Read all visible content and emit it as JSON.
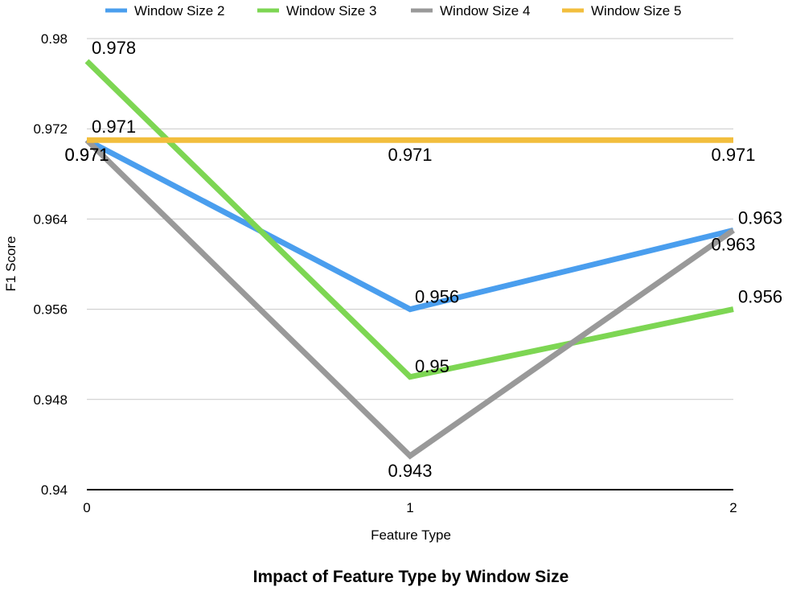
{
  "chart_data": {
    "type": "line",
    "title": "Impact of Feature Type by Window Size",
    "xlabel": "Feature Type",
    "ylabel": "F1 Score",
    "x": [
      0,
      1,
      2
    ],
    "x_tick_labels": [
      "0",
      "1",
      "2"
    ],
    "y_tick_labels": [
      "0.94",
      "0.948",
      "0.956",
      "0.964",
      "0.972",
      "0.98"
    ],
    "ylim": [
      0.94,
      0.98
    ],
    "grid": true,
    "legend_position": "top",
    "series": [
      {
        "name": "Window Size 2",
        "color": "#4A9EEE",
        "values": [
          0.971,
          0.956,
          0.963
        ],
        "labels": [
          "0.971",
          "0.956",
          "0.963"
        ]
      },
      {
        "name": "Window Size 3",
        "color": "#7DD653",
        "values": [
          0.978,
          0.95,
          0.956
        ],
        "labels": [
          "0.978",
          "0.95",
          "0.956"
        ]
      },
      {
        "name": "Window Size 4",
        "color": "#999999",
        "values": [
          0.971,
          0.943,
          0.963
        ],
        "labels": [
          "0.971",
          "0.943",
          "0.963"
        ]
      },
      {
        "name": "Window Size 5",
        "color": "#F2BE3D",
        "values": [
          0.971,
          0.971,
          0.971
        ],
        "labels": [
          "0.971",
          "0.971",
          "0.971"
        ]
      }
    ]
  }
}
